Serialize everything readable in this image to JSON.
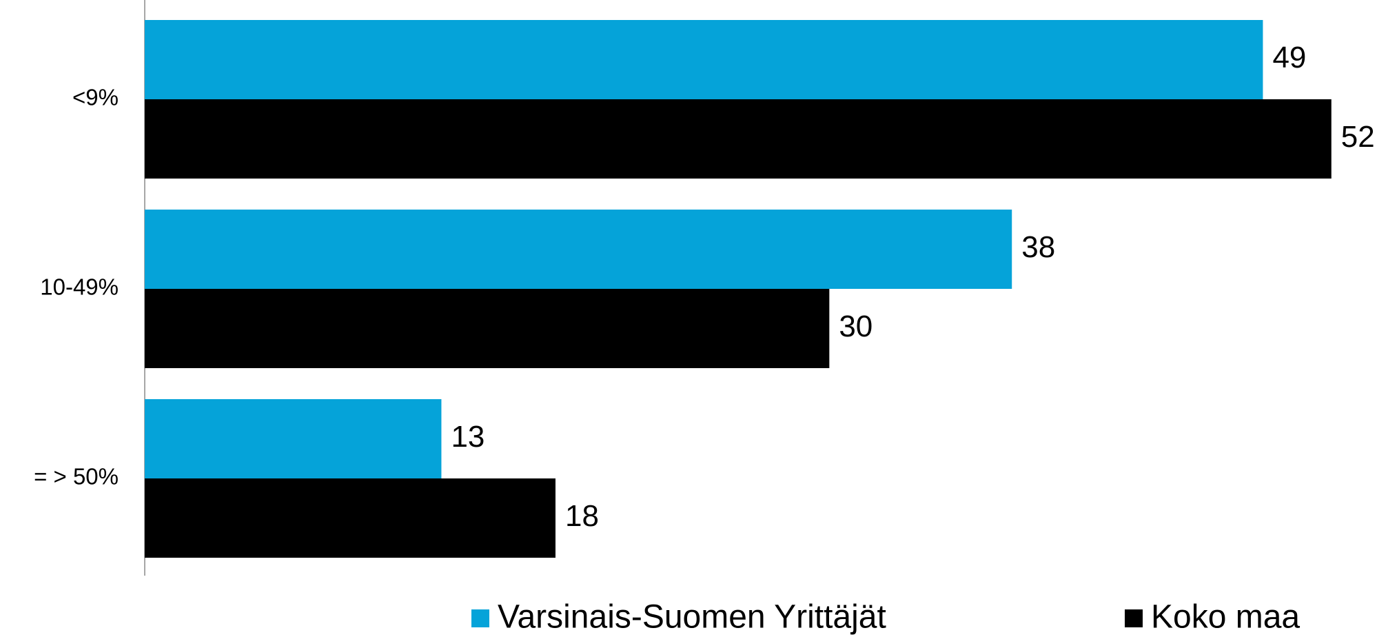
{
  "chart_data": {
    "type": "bar",
    "orientation": "horizontal",
    "categories": [
      "<9%",
      "10-49%",
      "= > 50%"
    ],
    "series": [
      {
        "name": "Varsinais-Suomen Yrittäjät",
        "color": "#05a3d9",
        "values": [
          49,
          38,
          13
        ]
      },
      {
        "name": "Koko maa",
        "color": "#000000",
        "values": [
          52,
          30,
          18
        ]
      }
    ],
    "xlim": [
      0,
      54
    ]
  }
}
